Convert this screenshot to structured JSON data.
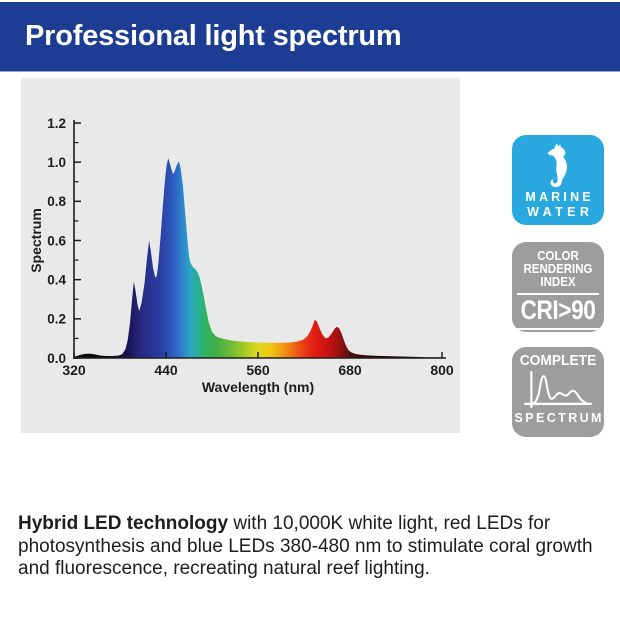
{
  "header": {
    "title": "Professional light spectrum",
    "bg_color": "#1d3d94",
    "text_color": "#ffffff"
  },
  "colors": {
    "panel_bg": "#e9e9e9",
    "marine_badge_blue": "#29a8df",
    "badge_gray": "#9d9d9c",
    "ink": "#1d1d1b"
  },
  "chart_data": {
    "type": "area",
    "title": "",
    "xlabel": "Wavelength (nm)",
    "ylabel": "Spectrum",
    "xlim": [
      320,
      800
    ],
    "ylim": [
      0,
      1.2
    ],
    "x_ticks": [
      320,
      440,
      560,
      680,
      800
    ],
    "x_tick_labels": [
      "320",
      "440",
      "560",
      "680",
      "800"
    ],
    "y_ticks": [
      0,
      0.2,
      0.4,
      0.6,
      0.8,
      1.0,
      1.2
    ],
    "y_tick_labels": [
      "0.0",
      "0.2",
      "0.4",
      "0.6",
      "0.8",
      "1.0",
      "1.2"
    ],
    "y_minor_ticks": [
      0.1,
      0.3,
      0.5,
      0.7,
      0.9,
      1.1
    ],
    "grid": false,
    "legend": false,
    "series": [
      {
        "name": "spectrum",
        "points": [
          [
            320,
            0.005
          ],
          [
            325,
            0.012
          ],
          [
            330,
            0.018
          ],
          [
            336,
            0.022
          ],
          [
            342,
            0.022
          ],
          [
            348,
            0.018
          ],
          [
            355,
            0.012
          ],
          [
            362,
            0.01
          ],
          [
            370,
            0.01
          ],
          [
            378,
            0.012
          ],
          [
            383,
            0.02
          ],
          [
            387,
            0.045
          ],
          [
            390,
            0.09
          ],
          [
            393,
            0.18
          ],
          [
            396,
            0.31
          ],
          [
            398,
            0.39
          ],
          [
            400,
            0.35
          ],
          [
            403,
            0.27
          ],
          [
            405,
            0.24
          ],
          [
            408,
            0.28
          ],
          [
            412,
            0.38
          ],
          [
            415,
            0.5
          ],
          [
            418,
            0.6
          ],
          [
            420,
            0.55
          ],
          [
            423,
            0.46
          ],
          [
            426,
            0.41
          ],
          [
            428,
            0.42
          ],
          [
            430,
            0.48
          ],
          [
            433,
            0.62
          ],
          [
            436,
            0.78
          ],
          [
            439,
            0.92
          ],
          [
            441,
            0.99
          ],
          [
            443,
            1.02
          ],
          [
            446,
            0.98
          ],
          [
            449,
            0.94
          ],
          [
            451,
            0.95
          ],
          [
            454,
            0.985
          ],
          [
            457,
            1.005
          ],
          [
            459,
            0.97
          ],
          [
            462,
            0.88
          ],
          [
            465,
            0.74
          ],
          [
            468,
            0.6
          ],
          [
            470,
            0.52
          ],
          [
            472,
            0.485
          ],
          [
            475,
            0.465
          ],
          [
            478,
            0.455
          ],
          [
            481,
            0.44
          ],
          [
            484,
            0.41
          ],
          [
            487,
            0.36
          ],
          [
            490,
            0.3
          ],
          [
            493,
            0.235
          ],
          [
            496,
            0.18
          ],
          [
            500,
            0.135
          ],
          [
            504,
            0.115
          ],
          [
            508,
            0.105
          ],
          [
            513,
            0.1
          ],
          [
            518,
            0.095
          ],
          [
            525,
            0.09
          ],
          [
            535,
            0.085
          ],
          [
            545,
            0.082
          ],
          [
            555,
            0.08
          ],
          [
            565,
            0.078
          ],
          [
            575,
            0.078
          ],
          [
            585,
            0.078
          ],
          [
            595,
            0.078
          ],
          [
            605,
            0.08
          ],
          [
            612,
            0.085
          ],
          [
            618,
            0.092
          ],
          [
            624,
            0.11
          ],
          [
            628,
            0.135
          ],
          [
            631,
            0.16
          ],
          [
            634,
            0.195
          ],
          [
            637,
            0.185
          ],
          [
            640,
            0.155
          ],
          [
            644,
            0.12
          ],
          [
            648,
            0.1
          ],
          [
            652,
            0.105
          ],
          [
            656,
            0.125
          ],
          [
            660,
            0.15
          ],
          [
            663,
            0.16
          ],
          [
            666,
            0.15
          ],
          [
            669,
            0.125
          ],
          [
            672,
            0.09
          ],
          [
            675,
            0.06
          ],
          [
            678,
            0.04
          ],
          [
            682,
            0.028
          ],
          [
            688,
            0.02
          ],
          [
            695,
            0.016
          ],
          [
            705,
            0.013
          ],
          [
            720,
            0.01
          ],
          [
            740,
            0.008
          ],
          [
            760,
            0.006
          ],
          [
            780,
            0.004
          ],
          [
            800,
            0.003
          ]
        ]
      }
    ],
    "gradient_stops": [
      {
        "wl": 320,
        "color": "#0a0a0a"
      },
      {
        "wl": 370,
        "color": "#0d0d14"
      },
      {
        "wl": 385,
        "color": "#131040"
      },
      {
        "wl": 395,
        "color": "#1c1a60"
      },
      {
        "wl": 405,
        "color": "#232578"
      },
      {
        "wl": 418,
        "color": "#283390"
      },
      {
        "wl": 430,
        "color": "#2a3a9e"
      },
      {
        "wl": 442,
        "color": "#2b4db2"
      },
      {
        "wl": 452,
        "color": "#2d64c2"
      },
      {
        "wl": 462,
        "color": "#2e86cc"
      },
      {
        "wl": 472,
        "color": "#2ba6c0"
      },
      {
        "wl": 482,
        "color": "#27b093"
      },
      {
        "wl": 492,
        "color": "#2fb25f"
      },
      {
        "wl": 505,
        "color": "#3fae46"
      },
      {
        "wl": 520,
        "color": "#63b838"
      },
      {
        "wl": 535,
        "color": "#8ec32c"
      },
      {
        "wl": 550,
        "color": "#c0d021"
      },
      {
        "wl": 562,
        "color": "#e2d71a"
      },
      {
        "wl": 575,
        "color": "#eec815"
      },
      {
        "wl": 588,
        "color": "#f2a512"
      },
      {
        "wl": 600,
        "color": "#f08011"
      },
      {
        "wl": 612,
        "color": "#ec5512"
      },
      {
        "wl": 624,
        "color": "#e73113"
      },
      {
        "wl": 637,
        "color": "#e01813"
      },
      {
        "wl": 650,
        "color": "#ca1410"
      },
      {
        "wl": 663,
        "color": "#a31210"
      },
      {
        "wl": 675,
        "color": "#701010"
      },
      {
        "wl": 690,
        "color": "#400a08"
      },
      {
        "wl": 720,
        "color": "#1a0504"
      },
      {
        "wl": 800,
        "color": "#050303"
      }
    ]
  },
  "badges": [
    {
      "id": "marine-water",
      "lines": [
        "MARINE",
        "WATER"
      ],
      "bg_color": "#29a8df",
      "icon": "seahorse-icon"
    },
    {
      "id": "color-rendering-index",
      "lines": [
        "COLOR",
        "RENDERING",
        "INDEX"
      ],
      "value": "CRI>90",
      "bg_color": "#9d9d9c"
    },
    {
      "id": "complete-spectrum",
      "top_label": "COMPLETE",
      "bottom_label": "SPECTRUM",
      "bg_color": "#9d9d9c",
      "icon": "spectrum-curve-icon"
    }
  ],
  "description": {
    "bold_text": "Hybrid LED technology",
    "rest_text": " with 10,000K white light, red LEDs for photosynthesis and blue LEDs 380-480 nm to stimulate coral growth and fluorescence, recreating natural reef lighting."
  }
}
